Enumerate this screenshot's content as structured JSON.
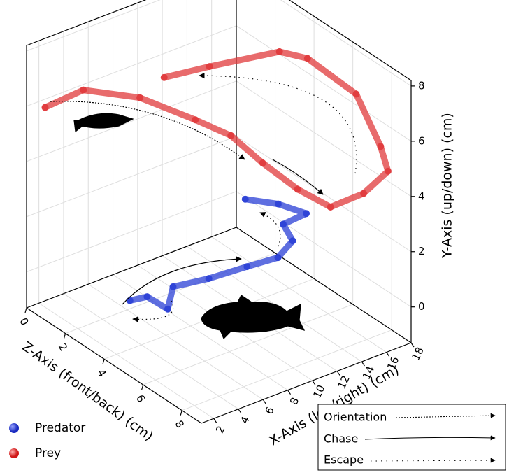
{
  "chart_data": {
    "type": "line3d",
    "x_axis_label": "X-Axis (left/right) (cm)",
    "y_axis_label": "Y-Axis (up/down) (cm)",
    "z_axis_label": "Z-Axis (front/back) (cm)",
    "xlim": [
      1,
      18
    ],
    "xticks": [
      2,
      4,
      6,
      8,
      10,
      12,
      14,
      16,
      18
    ],
    "ylim": [
      -1.3,
      8.2
    ],
    "yticks": [
      0,
      2,
      4,
      6,
      8
    ],
    "zlim": [
      0,
      9
    ],
    "zticks": [
      0,
      2,
      4,
      6,
      8
    ],
    "grid": true,
    "legend": "bottom-left",
    "series": [
      {
        "name": "Predator",
        "color": "#2a3fd6",
        "x": [
          1.5,
          2.9,
          3.0,
          5.0,
          7.9,
          11.0,
          13.5,
          14.7,
          15.5,
          15.8,
          15.1,
          14.0
        ],
        "y": [
          1.2,
          1.1,
          1.1,
          1.1,
          0.9,
          0.8,
          0.7,
          1.1,
          1.1,
          1.9,
          1.9,
          1.8
        ],
        "z": [
          5,
          5,
          6,
          5,
          5,
          5,
          5,
          5,
          4,
          5,
          4,
          3
        ]
      },
      {
        "name": "Prey",
        "color": "#e0393b",
        "x": [
          2.5,
          5.6,
          9.4,
          13.1,
          15.2,
          16.2,
          15.1,
          15.4,
          17.3,
          17.7,
          17.1,
          16.7,
          15.9,
          15.2,
          11.1,
          9.0
        ],
        "y": [
          5.7,
          5.8,
          5.1,
          3.9,
          3.2,
          2.5,
          2.9,
          2.9,
          3.3,
          4.5,
          5.5,
          7.0,
          7.5,
          7.4,
          7.1,
          6.6
        ],
        "z": [
          0,
          0,
          0.5,
          1,
          1.5,
          2.5,
          5,
          6.5,
          7,
          8,
          8,
          7,
          5,
          4,
          3,
          2
        ]
      }
    ],
    "arrow_legend": [
      "Orientation",
      "Chase",
      "Escape"
    ]
  }
}
